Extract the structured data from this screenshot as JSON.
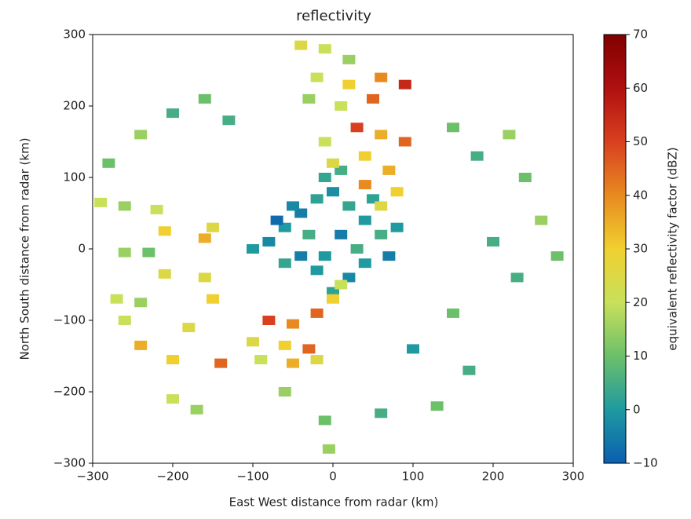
{
  "chart_data": {
    "type": "radar",
    "title": "reflectivity",
    "xlabel": "East West distance from radar (km)",
    "ylabel": "North South distance from radar (km)",
    "colorbar_label": "equivalent reflectivity factor (dBZ)",
    "xlim": [
      -300,
      300
    ],
    "ylim": [
      -300,
      300
    ],
    "zlim": [
      -10,
      70
    ],
    "xticks": [
      {
        "value": -300,
        "label": "−300"
      },
      {
        "value": -200,
        "label": "−200"
      },
      {
        "value": -100,
        "label": "−100"
      },
      0,
      100,
      200,
      300
    ],
    "yticks": [
      {
        "value": -300,
        "label": "−300"
      },
      {
        "value": -200,
        "label": "−200"
      },
      {
        "value": -100,
        "label": "−100"
      },
      0,
      100,
      200,
      300
    ],
    "zticks": [
      {
        "value": -10,
        "label": "−10"
      },
      0,
      10,
      20,
      30,
      40,
      50,
      60,
      70
    ],
    "colormap": [
      "#0a5fb0",
      "#1f9aa0",
      "#6cc06a",
      "#c8e05a",
      "#f0d030",
      "#e88a20",
      "#d84020",
      "#b01010",
      "#800000"
    ],
    "x": [
      -80,
      -60,
      -40,
      -20,
      0,
      20,
      40,
      60,
      70,
      40,
      20,
      0,
      -20,
      -40,
      -60,
      -100,
      -30,
      10,
      -10,
      30,
      -50,
      80,
      -10,
      10,
      -70,
      50,
      -40,
      -10,
      20,
      60,
      90,
      -20,
      20,
      50,
      -30,
      10,
      30,
      60,
      90,
      -10,
      0,
      40,
      70,
      40,
      80,
      60,
      -290,
      -260,
      -220,
      -210,
      -150,
      -160,
      -260,
      -230,
      -210,
      -160,
      -150,
      -270,
      -240,
      -260,
      -180,
      -240,
      -200,
      -140,
      -200,
      -170,
      -80,
      -50,
      -20,
      0,
      10,
      -100,
      -60,
      -30,
      -90,
      -50,
      -20,
      -60,
      -10,
      -5,
      150,
      220,
      180,
      240,
      260,
      200,
      280,
      230,
      150,
      100,
      170,
      60,
      130,
      -240,
      -160,
      -130,
      -280,
      -200
    ],
    "y": [
      10,
      30,
      50,
      70,
      80,
      60,
      40,
      20,
      -10,
      -20,
      -40,
      -60,
      -30,
      -10,
      -20,
      0,
      20,
      20,
      -10,
      0,
      60,
      30,
      100,
      110,
      40,
      70,
      285,
      280,
      265,
      240,
      230,
      240,
      230,
      210,
      210,
      200,
      170,
      160,
      150,
      150,
      120,
      130,
      110,
      90,
      80,
      60,
      65,
      60,
      55,
      25,
      30,
      15,
      -5,
      -5,
      -35,
      -40,
      -70,
      -70,
      -75,
      -100,
      -110,
      -135,
      -155,
      -160,
      -210,
      -225,
      -100,
      -105,
      -90,
      -70,
      -50,
      -130,
      -135,
      -140,
      -155,
      -160,
      -155,
      -200,
      -240,
      -280,
      170,
      160,
      130,
      100,
      40,
      10,
      -10,
      -40,
      -90,
      -140,
      -170,
      -230,
      -220,
      160,
      210,
      180,
      120,
      190
    ],
    "values": [
      -3,
      0,
      -5,
      2,
      -2,
      3,
      0,
      5,
      -5,
      0,
      -3,
      2,
      0,
      -5,
      3,
      0,
      5,
      -5,
      0,
      5,
      -3,
      0,
      3,
      5,
      -8,
      2,
      25,
      20,
      15,
      40,
      55,
      20,
      30,
      45,
      15,
      20,
      50,
      35,
      45,
      20,
      25,
      30,
      35,
      40,
      30,
      25,
      20,
      15,
      20,
      30,
      25,
      35,
      15,
      10,
      25,
      25,
      30,
      20,
      15,
      20,
      25,
      35,
      30,
      45,
      20,
      15,
      50,
      40,
      45,
      30,
      20,
      25,
      30,
      45,
      20,
      35,
      25,
      15,
      10,
      15,
      10,
      15,
      5,
      10,
      15,
      5,
      10,
      5,
      10,
      0,
      5,
      5,
      10,
      15,
      10,
      5,
      10,
      5
    ]
  }
}
